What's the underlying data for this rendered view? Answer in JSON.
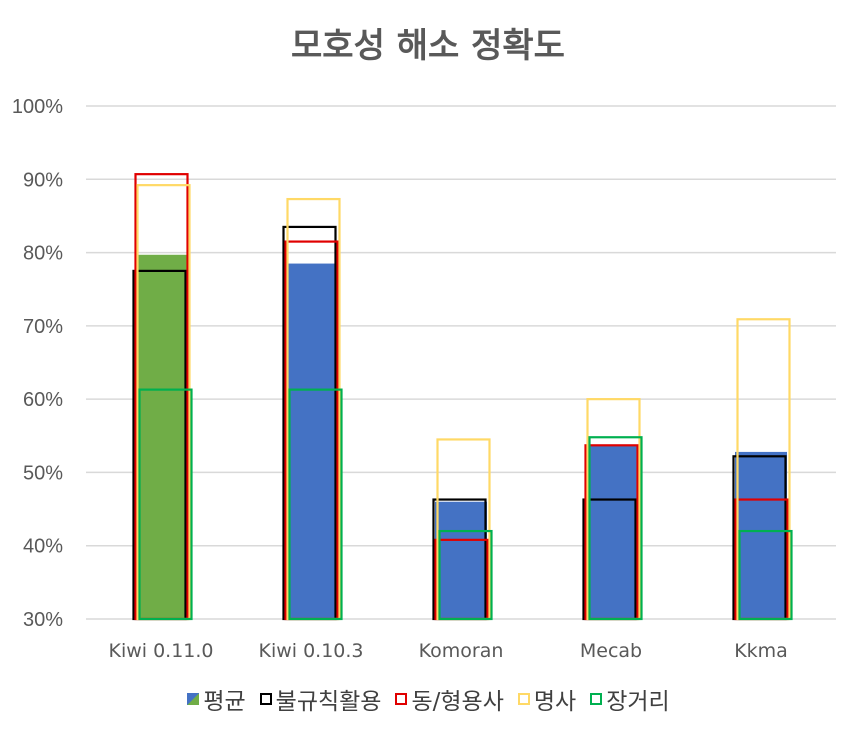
{
  "chart_data": {
    "type": "bar",
    "title": "모호성 해소 정확도",
    "categories": [
      "Kiwi 0.11.0",
      "Kiwi 0.10.3",
      "Komoran",
      "Mecab",
      "Kkma"
    ],
    "y_ticks": [
      "30%",
      "40%",
      "50%",
      "60%",
      "70%",
      "80%",
      "90%",
      "100%"
    ],
    "ylim": [
      30,
      100
    ],
    "grid": true,
    "legend_position": "bottom",
    "series": [
      {
        "name": "평균",
        "style": "filled",
        "values": [
          79.7,
          78.5,
          46.0,
          53.6,
          52.8
        ],
        "colors": [
          "#70AD47",
          "#4472C4",
          "#4472C4",
          "#4472C4",
          "#4472C4"
        ]
      },
      {
        "name": "불규칙활용",
        "style": "outline",
        "color": "#000000",
        "values": [
          77.5,
          83.5,
          46.3,
          46.3,
          52.2
        ]
      },
      {
        "name": "동/형용사",
        "style": "outline",
        "color": "#E00000",
        "values": [
          90.7,
          81.5,
          40.8,
          53.7,
          46.3
        ]
      },
      {
        "name": "명사",
        "style": "outline",
        "color": "#FFD966",
        "values": [
          89.2,
          87.3,
          54.5,
          60.0,
          70.9
        ]
      },
      {
        "name": "장거리",
        "style": "outline",
        "color": "#00B050",
        "values": [
          61.3,
          61.3,
          42.0,
          54.8,
          42.0
        ]
      }
    ]
  }
}
